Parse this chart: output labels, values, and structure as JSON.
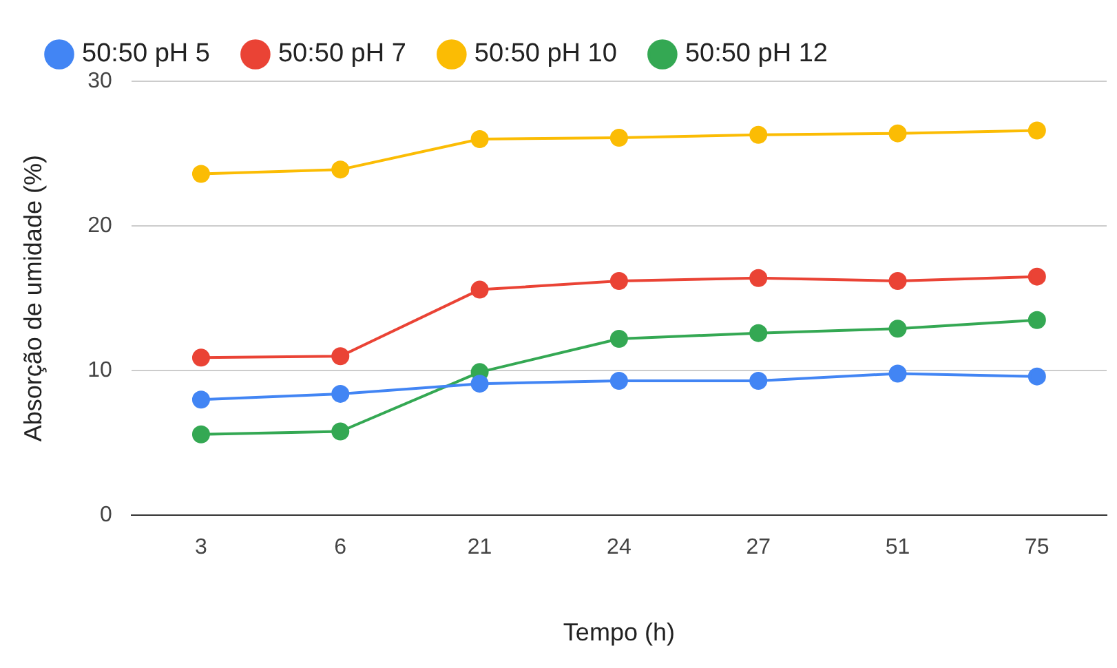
{
  "chart_data": {
    "type": "line",
    "xlabel": "Tempo (h)",
    "ylabel": "Absorção de umidade (%)",
    "categories": [
      "3",
      "6",
      "21",
      "24",
      "27",
      "51",
      "75"
    ],
    "series": [
      {
        "name": "50:50 pH 5",
        "color": "#4285f4",
        "values": [
          8.0,
          8.4,
          9.1,
          9.3,
          9.3,
          9.8,
          9.6
        ]
      },
      {
        "name": "50:50 pH 7",
        "color": "#ea4335",
        "values": [
          10.9,
          11.0,
          15.6,
          16.2,
          16.4,
          16.2,
          16.5
        ]
      },
      {
        "name": "50:50 pH 10",
        "color": "#fbbc04",
        "values": [
          23.6,
          23.9,
          26.0,
          26.1,
          26.3,
          26.4,
          26.6
        ]
      },
      {
        "name": "50:50 pH 12",
        "color": "#34a853",
        "values": [
          5.6,
          5.8,
          9.9,
          12.2,
          12.6,
          12.9,
          13.5
        ]
      }
    ],
    "ylim": [
      0,
      30
    ],
    "yticks": [
      0,
      10,
      20,
      30
    ],
    "grid": "y",
    "legend": "top",
    "marker": "circle",
    "line_style": "solid"
  }
}
